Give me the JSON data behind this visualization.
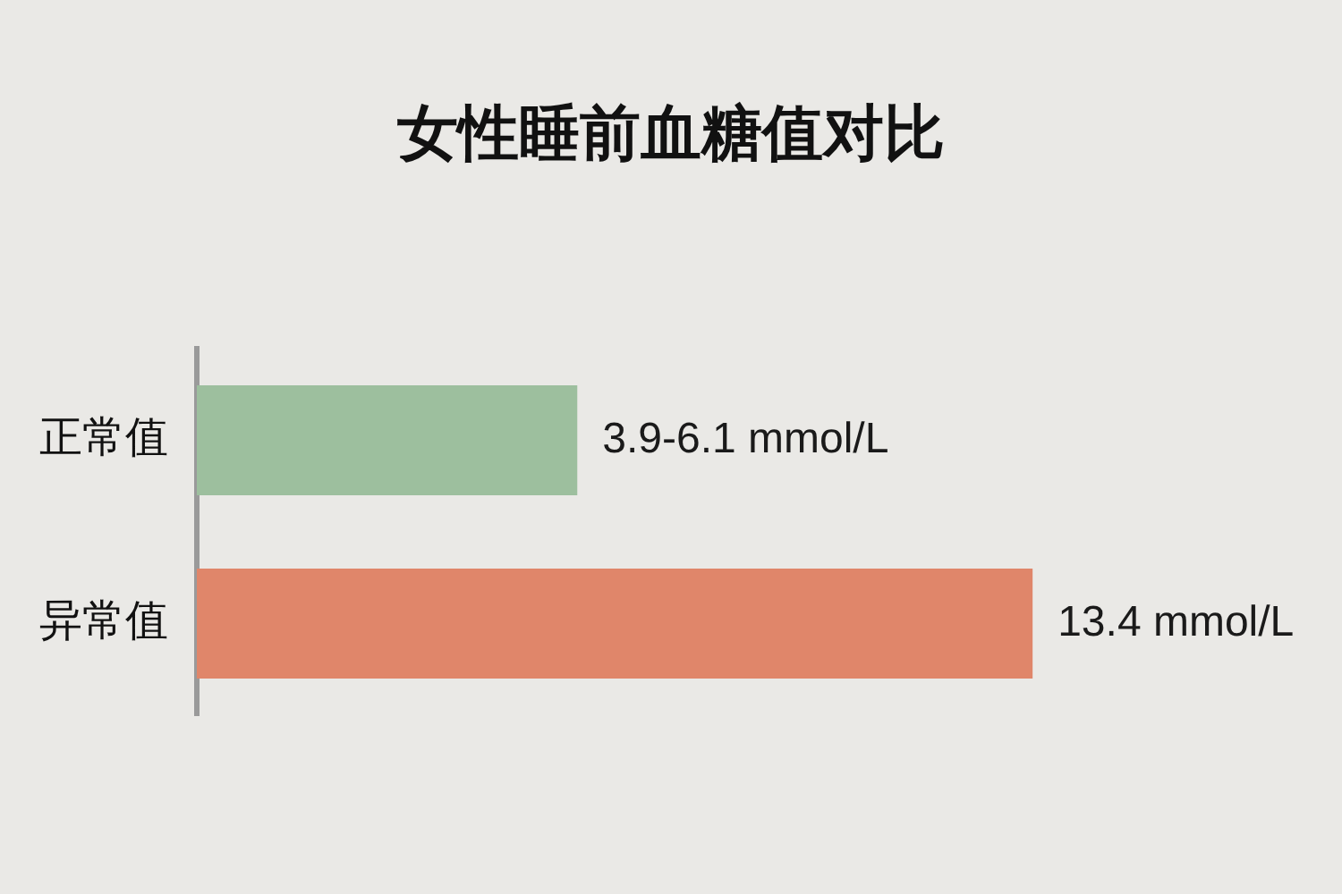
{
  "chart_data": {
    "type": "bar",
    "orientation": "horizontal",
    "title": "女性睡前血糖值对比",
    "categories": [
      "正常值",
      "异常值"
    ],
    "values": [
      6.1,
      13.4
    ],
    "colors": [
      "#9dbf9e",
      "#e0866a"
    ],
    "value_labels": [
      "3.9-6.1 mmol/L",
      "13.4 mmol/L"
    ],
    "legend": false
  }
}
